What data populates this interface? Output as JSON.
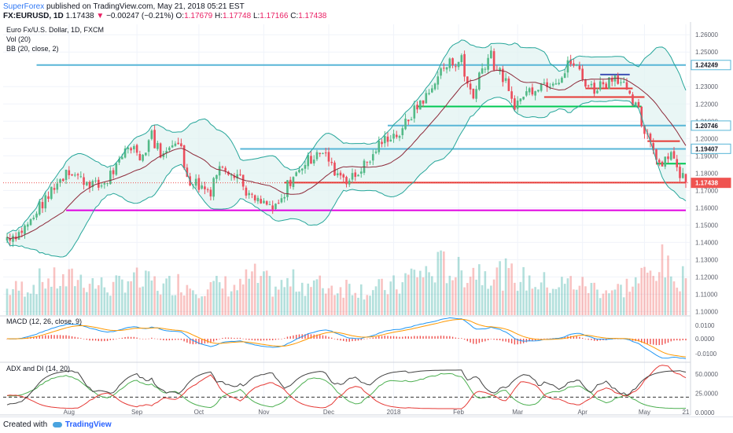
{
  "header": {
    "publisher": "SuperForex",
    "published_text": "published on TradingView.com, May 21, 2018 05:21 EST",
    "symbol": "FX:EURUSD, 1D",
    "last": "1.17438",
    "change_arrow": "▼",
    "change": "−0.00247 (−0.21%)",
    "o_label": "O:",
    "o_val": "1.17679",
    "h_label": "H:",
    "h_val": "1.17748",
    "l_label": "L:",
    "l_val": "1.17166",
    "c_label": "C:",
    "c_val": "1.17438"
  },
  "legend": {
    "title": "Euro Fx/U.S. Dollar, 1D, FXCM",
    "vol": "Vol (20)",
    "bb": "BB (20, close, 2)",
    "macd": "MACD (12, 26, close, 9)",
    "adx": "ADX and DI (14, 20)"
  },
  "footer": {
    "created_with": "Created with",
    "brand": "TradingView"
  },
  "colors": {
    "up": "#26a69a",
    "down": "#ef5350",
    "up_candle": "#53b987",
    "down_candle": "#eb4d5c",
    "bb_fill": "#e0f2f1",
    "bb_band": "#26a69a",
    "bb_mid": "#8d2a3a",
    "macd_line": "#2196f3",
    "signal_line": "#ff9800",
    "hist": "#ef5350",
    "resistance_blue": "#58b6d7",
    "support_red": "#e53935",
    "support_green": "#00c853",
    "magenta": "#e000e0",
    "last_price_bg": "#ef5350"
  },
  "chart_data": {
    "type": "candlestick",
    "x_ticks": [
      "Aug",
      "Sep",
      "Oct",
      "Nov",
      "Dec",
      "2018",
      "Feb",
      "Mar",
      "Apr",
      "May",
      "21"
    ],
    "price_axis": {
      "ticks": [
        "1.26000",
        "1.25000",
        "1.23000",
        "1.22000",
        "1.21000",
        "1.20000",
        "1.19000",
        "1.18000",
        "1.17000",
        "1.16000",
        "1.15000",
        "1.14000",
        "1.13000",
        "1.12000",
        "1.11000",
        "1.10000"
      ],
      "range": [
        1.097,
        1.266
      ]
    },
    "price_labels": [
      {
        "text": "1.24249",
        "value": 1.24249,
        "style": "level"
      },
      {
        "text": "1.20746",
        "value": 1.20746,
        "style": "level"
      },
      {
        "text": "1.19407",
        "value": 1.19407,
        "style": "level"
      },
      {
        "text": "1.17438",
        "value": 1.17438,
        "style": "last"
      }
    ],
    "macd_axis": {
      "ticks": [
        "0.0100",
        "0.0000",
        "-0.0100"
      ]
    },
    "adx_axis": {
      "ticks": [
        "50.0000",
        "25.0000",
        "0.0000"
      ]
    },
    "levels": [
      {
        "name": "resistance-1.2425",
        "value": 1.2425,
        "color": "#58b6d7",
        "from": "2017-07-17",
        "to": "2018-05-21"
      },
      {
        "name": "resistance-1.2075",
        "value": 1.2075,
        "color": "#58b6d7",
        "from": "2017-12-29",
        "to": "2018-05-21"
      },
      {
        "name": "resistance-1.1940",
        "value": 1.194,
        "color": "#58b6d7",
        "from": "2017-10-20",
        "to": "2018-05-21"
      },
      {
        "name": "support-1.1745",
        "value": 1.1745,
        "color": "#e53935",
        "from": "2017-11-10",
        "to": "2018-05-21"
      },
      {
        "name": "support-1.1585",
        "value": 1.1585,
        "color": "#e000e0",
        "from": "2017-07-31",
        "to": "2018-05-21"
      },
      {
        "name": "support-1.2185",
        "value": 1.2185,
        "color": "#00c853",
        "from": "2018-01-12",
        "to": "2018-04-30"
      },
      {
        "name": "support-1.2240",
        "value": 1.224,
        "color": "#e53935",
        "from": "2018-03-14",
        "to": "2018-05-01"
      },
      {
        "name": "support-1.2290",
        "value": 1.229,
        "color": "#e53935",
        "from": "2018-04-03",
        "to": "2018-04-25"
      },
      {
        "name": "resistance-1.2370",
        "value": 1.237,
        "color": "#3f51b5",
        "from": "2018-04-10",
        "to": "2018-04-24"
      },
      {
        "name": "support-1.1985",
        "value": 1.1985,
        "color": "#e53935",
        "from": "2018-05-02",
        "to": "2018-05-17"
      },
      {
        "name": "support-1.1855",
        "value": 1.1855,
        "color": "#00c853",
        "from": "2018-05-07",
        "to": "2018-05-21"
      }
    ],
    "anchors": [
      {
        "date": "2017-07-01",
        "close": 1.142,
        "vol": 90
      },
      {
        "date": "2017-07-10",
        "close": 1.147,
        "vol": 100
      },
      {
        "date": "2017-07-20",
        "close": 1.164,
        "vol": 130
      },
      {
        "date": "2017-07-31",
        "close": 1.183,
        "vol": 120
      },
      {
        "date": "2017-08-04",
        "close": 1.178,
        "vol": 140
      },
      {
        "date": "2017-08-15",
        "close": 1.172,
        "vol": 110
      },
      {
        "date": "2017-08-22",
        "close": 1.181,
        "vol": 100
      },
      {
        "date": "2017-08-29",
        "close": 1.196,
        "vol": 140
      },
      {
        "date": "2017-09-05",
        "close": 1.19,
        "vol": 110
      },
      {
        "date": "2017-09-08",
        "close": 1.204,
        "vol": 130
      },
      {
        "date": "2017-09-14",
        "close": 1.19,
        "vol": 100
      },
      {
        "date": "2017-09-20",
        "close": 1.2,
        "vol": 120
      },
      {
        "date": "2017-09-27",
        "close": 1.176,
        "vol": 110
      },
      {
        "date": "2017-10-06",
        "close": 1.17,
        "vol": 100
      },
      {
        "date": "2017-10-12",
        "close": 1.185,
        "vol": 110
      },
      {
        "date": "2017-10-20",
        "close": 1.179,
        "vol": 100
      },
      {
        "date": "2017-10-26",
        "close": 1.165,
        "vol": 140
      },
      {
        "date": "2017-11-07",
        "close": 1.159,
        "vol": 100
      },
      {
        "date": "2017-11-15",
        "close": 1.178,
        "vol": 120
      },
      {
        "date": "2017-11-27",
        "close": 1.194,
        "vol": 110
      },
      {
        "date": "2017-12-06",
        "close": 1.18,
        "vol": 100
      },
      {
        "date": "2017-12-12",
        "close": 1.176,
        "vol": 110
      },
      {
        "date": "2017-12-20",
        "close": 1.186,
        "vol": 90
      },
      {
        "date": "2017-12-29",
        "close": 1.201,
        "vol": 100
      },
      {
        "date": "2018-01-05",
        "close": 1.203,
        "vol": 110
      },
      {
        "date": "2018-01-12",
        "close": 1.218,
        "vol": 160
      },
      {
        "date": "2018-01-17",
        "close": 1.224,
        "vol": 150
      },
      {
        "date": "2018-01-25",
        "close": 1.241,
        "vol": 180
      },
      {
        "date": "2018-02-02",
        "close": 1.246,
        "vol": 150
      },
      {
        "date": "2018-02-08",
        "close": 1.225,
        "vol": 170
      },
      {
        "date": "2018-02-16",
        "close": 1.25,
        "vol": 160
      },
      {
        "date": "2018-02-28",
        "close": 1.22,
        "vol": 140
      },
      {
        "date": "2018-03-09",
        "close": 1.23,
        "vol": 120
      },
      {
        "date": "2018-03-21",
        "close": 1.235,
        "vol": 110
      },
      {
        "date": "2018-03-27",
        "close": 1.244,
        "vol": 120
      },
      {
        "date": "2018-04-06",
        "close": 1.228,
        "vol": 100
      },
      {
        "date": "2018-04-17",
        "close": 1.237,
        "vol": 90
      },
      {
        "date": "2018-04-24",
        "close": 1.223,
        "vol": 110
      },
      {
        "date": "2018-04-30",
        "close": 1.208,
        "vol": 140
      },
      {
        "date": "2018-05-04",
        "close": 1.196,
        "vol": 150
      },
      {
        "date": "2018-05-08",
        "close": 1.186,
        "vol": 200
      },
      {
        "date": "2018-05-14",
        "close": 1.194,
        "vol": 120
      },
      {
        "date": "2018-05-16",
        "close": 1.181,
        "vol": 150
      },
      {
        "date": "2018-05-21",
        "close": 1.1744,
        "vol": 120
      }
    ]
  }
}
